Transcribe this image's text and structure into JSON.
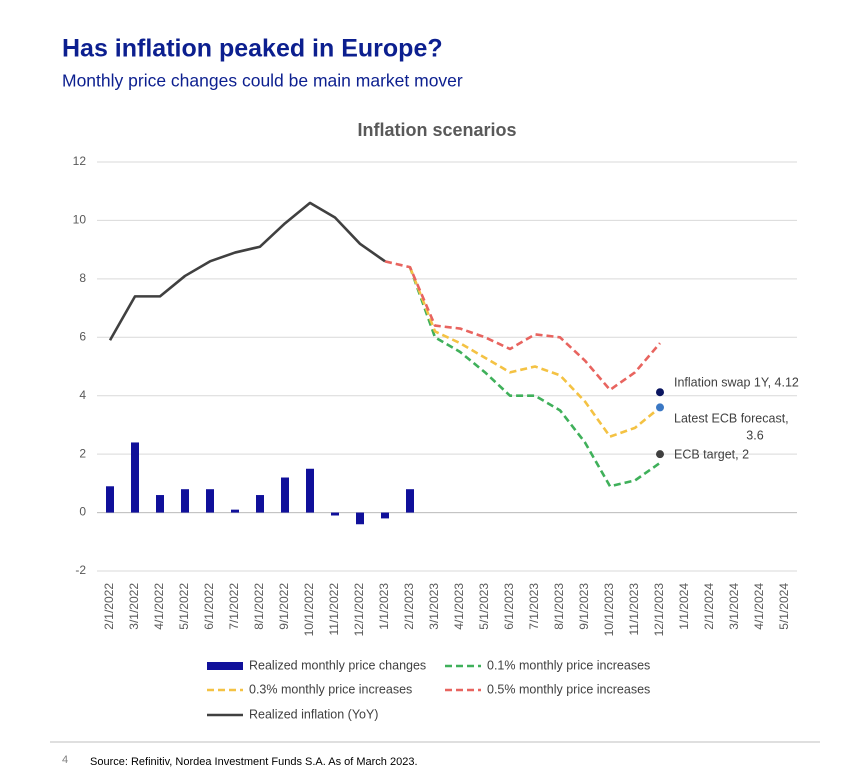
{
  "slide": {
    "title": "Has inflation peaked in Europe?",
    "subtitle": "Monthly price changes could be main market mover",
    "page_number": "4",
    "source": "Source: Refinitiv, Nordea Investment Funds S.A. As of March 2023."
  },
  "chart_data": {
    "type": "line",
    "title": "Inflation scenarios",
    "categories": [
      "2/1/2022",
      "3/1/2022",
      "4/1/2022",
      "5/1/2022",
      "6/1/2022",
      "7/1/2022",
      "8/1/2022",
      "9/1/2022",
      "10/1/2022",
      "11/1/2022",
      "12/1/2022",
      "1/1/2023",
      "2/1/2023",
      "3/1/2023",
      "4/1/2023",
      "5/1/2023",
      "6/1/2023",
      "7/1/2023",
      "8/1/2023",
      "9/1/2023",
      "10/1/2023",
      "11/1/2023",
      "12/1/2023",
      "1/1/2024",
      "2/1/2024",
      "3/1/2024",
      "4/1/2024",
      "5/1/2024"
    ],
    "series": [
      {
        "name": "Realized monthly price changes",
        "kind": "bar",
        "color": "#10109a",
        "values": [
          0.9,
          2.4,
          0.6,
          0.8,
          0.8,
          0.1,
          0.6,
          1.2,
          1.5,
          -0.1,
          -0.4,
          -0.2,
          0.8,
          null,
          null,
          null,
          null,
          null,
          null,
          null,
          null,
          null,
          null,
          null,
          null,
          null,
          null,
          null
        ]
      },
      {
        "name": "0.1% monthly price increases",
        "kind": "line",
        "dashed": true,
        "color": "#3fb05a",
        "values": [
          null,
          null,
          null,
          null,
          null,
          null,
          null,
          null,
          null,
          null,
          null,
          null,
          8.4,
          6.0,
          5.5,
          4.8,
          4.0,
          4.0,
          3.5,
          2.4,
          0.9,
          1.1,
          1.7,
          null,
          null,
          null,
          null,
          null
        ]
      },
      {
        "name": "0.3% monthly price increases",
        "kind": "line",
        "dashed": true,
        "color": "#f4c243",
        "values": [
          null,
          null,
          null,
          null,
          null,
          null,
          null,
          null,
          null,
          null,
          null,
          null,
          8.4,
          6.2,
          5.8,
          5.3,
          4.8,
          5.0,
          4.7,
          3.8,
          2.6,
          2.9,
          3.6,
          null,
          null,
          null,
          null,
          null
        ]
      },
      {
        "name": "0.5% monthly price increases",
        "kind": "line",
        "dashed": true,
        "color": "#e8645f",
        "values": [
          null,
          null,
          null,
          null,
          null,
          null,
          null,
          null,
          null,
          null,
          null,
          8.6,
          8.4,
          6.4,
          6.3,
          6.0,
          5.6,
          6.1,
          6.0,
          5.2,
          4.2,
          4.8,
          5.8,
          null,
          null,
          null,
          null,
          null
        ]
      },
      {
        "name": "Realized inflation (YoY)",
        "kind": "line",
        "dashed": false,
        "color": "#404040",
        "values": [
          5.9,
          7.4,
          7.4,
          8.1,
          8.6,
          8.9,
          9.1,
          9.9,
          10.6,
          10.1,
          9.2,
          8.6,
          null,
          null,
          null,
          null,
          null,
          null,
          null,
          null,
          null,
          null,
          null,
          null,
          null,
          null,
          null,
          null
        ]
      }
    ],
    "annotations": [
      {
        "category": "12/1/2023",
        "value": 4.12,
        "color": "#0a1560",
        "lines": [
          "Inflation swap 1Y, 4.12"
        ]
      },
      {
        "category": "12/1/2023",
        "value": 3.6,
        "color": "#3b78c4",
        "lines": [
          "Latest ECB forecast,",
          "3.6"
        ]
      },
      {
        "category": "12/1/2023",
        "value": 2,
        "color": "#404040",
        "lines": [
          "ECB target, 2"
        ]
      }
    ],
    "ylim": [
      -2,
      12
    ],
    "yticks": [
      -2,
      0,
      2,
      4,
      6,
      8,
      10,
      12
    ],
    "grid": true
  }
}
